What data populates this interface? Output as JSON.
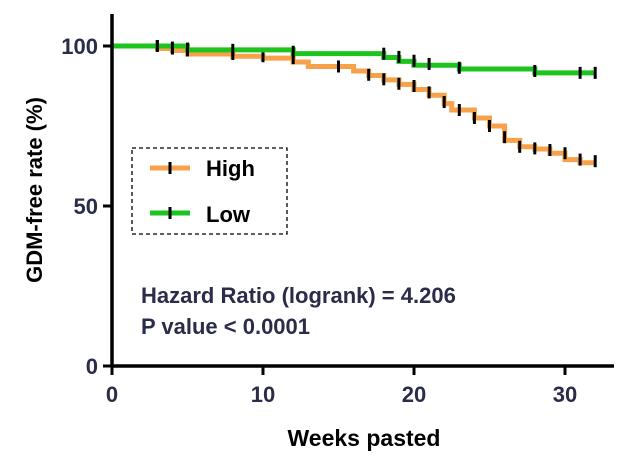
{
  "chart_data": {
    "type": "line",
    "subtype": "kaplan-meier-step",
    "xlabel": "Weeks pasted",
    "ylabel": "GDM-free rate (%)",
    "xlim": [
      0,
      35
    ],
    "ylim": [
      0,
      110
    ],
    "xticks": [
      0,
      10,
      20,
      30
    ],
    "yticks": [
      0,
      50,
      100
    ],
    "legend_position": "middle-left",
    "annotations": [
      "Hazard Ratio (logrank) = 4.206",
      "P value < 0.0001"
    ],
    "series": [
      {
        "name": "High",
        "color": "#f7a24a",
        "steps": [
          {
            "x": 0,
            "y": 100
          },
          {
            "x": 3,
            "y": 99.2
          },
          {
            "x": 4,
            "y": 98.6
          },
          {
            "x": 5,
            "y": 97.5
          },
          {
            "x": 8,
            "y": 96.8
          },
          {
            "x": 10,
            "y": 96.2
          },
          {
            "x": 12,
            "y": 95
          },
          {
            "x": 13,
            "y": 93.6
          },
          {
            "x": 16,
            "y": 92.2
          },
          {
            "x": 17,
            "y": 90.8
          },
          {
            "x": 18,
            "y": 89.4
          },
          {
            "x": 19,
            "y": 88
          },
          {
            "x": 20,
            "y": 86.4
          },
          {
            "x": 21,
            "y": 84.6
          },
          {
            "x": 22,
            "y": 82
          },
          {
            "x": 22.5,
            "y": 80
          },
          {
            "x": 24,
            "y": 77.5
          },
          {
            "x": 25,
            "y": 75
          },
          {
            "x": 26,
            "y": 70.5
          },
          {
            "x": 27,
            "y": 68.5
          },
          {
            "x": 28,
            "y": 67.8
          },
          {
            "x": 29,
            "y": 66.5
          },
          {
            "x": 30,
            "y": 64.5
          },
          {
            "x": 31,
            "y": 63.5
          },
          {
            "x": 32,
            "y": 63.5
          }
        ],
        "censored": [
          {
            "x": 3,
            "y": 100
          },
          {
            "x": 4,
            "y": 99.2
          },
          {
            "x": 5,
            "y": 98.6
          },
          {
            "x": 8,
            "y": 97.5
          },
          {
            "x": 10,
            "y": 96.8
          },
          {
            "x": 12,
            "y": 96.2
          },
          {
            "x": 15,
            "y": 93.6
          },
          {
            "x": 17,
            "y": 91
          },
          {
            "x": 18,
            "y": 89.6
          },
          {
            "x": 19,
            "y": 88.2
          },
          {
            "x": 20,
            "y": 87.5
          },
          {
            "x": 21,
            "y": 85.5
          },
          {
            "x": 22,
            "y": 82.5
          },
          {
            "x": 23,
            "y": 80
          },
          {
            "x": 24,
            "y": 77.5
          },
          {
            "x": 25,
            "y": 75
          },
          {
            "x": 26,
            "y": 71.5
          },
          {
            "x": 27,
            "y": 68.5
          },
          {
            "x": 28,
            "y": 68
          },
          {
            "x": 29,
            "y": 67.5
          },
          {
            "x": 30,
            "y": 66.5
          },
          {
            "x": 31,
            "y": 64.5
          },
          {
            "x": 32,
            "y": 64
          }
        ]
      },
      {
        "name": "Low",
        "color": "#1ec41e",
        "steps": [
          {
            "x": 0,
            "y": 100
          },
          {
            "x": 5,
            "y": 98.8
          },
          {
            "x": 12,
            "y": 97.6
          },
          {
            "x": 18,
            "y": 96.4
          },
          {
            "x": 19,
            "y": 95.2
          },
          {
            "x": 20,
            "y": 94
          },
          {
            "x": 23,
            "y": 92.8
          },
          {
            "x": 28,
            "y": 91.6
          },
          {
            "x": 32,
            "y": 91.6
          }
        ],
        "censored": [
          {
            "x": 3,
            "y": 100
          },
          {
            "x": 4,
            "y": 99.5
          },
          {
            "x": 5,
            "y": 99.2
          },
          {
            "x": 8,
            "y": 98.8
          },
          {
            "x": 12,
            "y": 98.2
          },
          {
            "x": 18,
            "y": 97.6
          },
          {
            "x": 19,
            "y": 96.6
          },
          {
            "x": 20,
            "y": 95.4
          },
          {
            "x": 21,
            "y": 94.4
          },
          {
            "x": 23,
            "y": 93.2
          },
          {
            "x": 28,
            "y": 92.2
          },
          {
            "x": 31,
            "y": 91.6
          },
          {
            "x": 32,
            "y": 91.6
          }
        ]
      }
    ]
  }
}
